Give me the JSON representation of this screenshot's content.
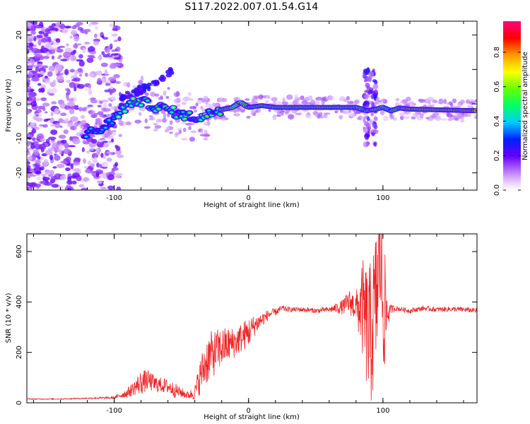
{
  "title": "S117.2022.007.01.54.G14",
  "chart_data": [
    {
      "type": "heatmap",
      "xlabel": "Height of straight line (km)",
      "ylabel": "Frequency (Hz)",
      "xlim": [
        -165,
        170
      ],
      "ylim": [
        -25,
        24
      ],
      "xticks": [
        -100,
        0,
        100
      ],
      "yticks": [
        -20,
        -10,
        0,
        10,
        20
      ],
      "track": [
        [
          -120,
          -8.5
        ],
        [
          -110,
          -7.5
        ],
        [
          -102,
          -5
        ],
        [
          -95,
          -2
        ],
        [
          -88,
          0
        ],
        [
          -82,
          1
        ],
        [
          -75,
          0
        ],
        [
          -68,
          -1
        ],
        [
          -60,
          -1.5
        ],
        [
          -52,
          -3
        ],
        [
          -45,
          -3.5
        ],
        [
          -38,
          -4
        ],
        [
          -32,
          -3.5
        ],
        [
          -25,
          -2
        ],
        [
          -18,
          -1.5
        ],
        [
          -12,
          -1
        ],
        [
          -6,
          0.5
        ],
        [
          0,
          -1
        ],
        [
          10,
          -0.5
        ],
        [
          20,
          -1
        ],
        [
          40,
          -1
        ],
        [
          60,
          -1
        ],
        [
          80,
          -1
        ],
        [
          88,
          -2
        ],
        [
          95,
          -1.5
        ],
        [
          100,
          -1
        ],
        [
          106,
          -2
        ],
        [
          112,
          -1.2
        ],
        [
          120,
          -1.5
        ],
        [
          140,
          -1.7
        ],
        [
          170,
          -2
        ]
      ],
      "colorbar": {
        "label": "Normalized spectral amplitude",
        "ticks": [
          "0.0",
          "0.2",
          "0.4",
          "0.6",
          "0.8"
        ],
        "tick_values": [
          0.0,
          0.2,
          0.4,
          0.6,
          0.8
        ],
        "range": [
          0,
          0.98
        ],
        "stops": [
          [
            0.0,
            "#ffffff"
          ],
          [
            0.05,
            "#e6c8ff"
          ],
          [
            0.12,
            "#b36bff"
          ],
          [
            0.2,
            "#6600ff"
          ],
          [
            0.3,
            "#0020ff"
          ],
          [
            0.4,
            "#00ccff"
          ],
          [
            0.5,
            "#00ff66"
          ],
          [
            0.6,
            "#66ff00"
          ],
          [
            0.7,
            "#ffff00"
          ],
          [
            0.8,
            "#ff9900"
          ],
          [
            0.9,
            "#ff0000"
          ],
          [
            1.0,
            "#ff0080"
          ]
        ]
      }
    },
    {
      "type": "line",
      "xlabel": "Height of straight line (km)",
      "ylabel": "SNR (10 * v/v)",
      "xlim": [
        -165,
        170
      ],
      "ylim": [
        0,
        670
      ],
      "xticks": [
        -100,
        0,
        100
      ],
      "yticks": [
        0,
        200,
        400,
        600
      ],
      "color": "#ee2222",
      "series": [
        {
          "x": [
            -165,
            -140,
            -120,
            -100,
            -90,
            -85,
            -80,
            -75,
            -70,
            -65,
            -60,
            -55,
            -50,
            -45,
            -40,
            -35,
            -30,
            -25,
            -20,
            -15,
            -10,
            -5,
            0,
            5,
            10,
            15,
            20,
            25,
            30,
            40,
            50,
            60,
            70,
            75,
            80,
            85,
            88,
            90,
            92,
            95,
            98,
            100,
            102,
            105,
            110,
            115,
            120,
            130,
            140,
            150,
            160,
            170
          ],
          "values": [
            15,
            15,
            18,
            20,
            40,
            60,
            80,
            90,
            75,
            70,
            65,
            50,
            40,
            30,
            40,
            120,
            180,
            200,
            220,
            230,
            240,
            260,
            280,
            310,
            330,
            350,
            360,
            375,
            370,
            370,
            365,
            370,
            380,
            400,
            380,
            370,
            300,
            250,
            300,
            400,
            600,
            400,
            350,
            370,
            375,
            370,
            365,
            375,
            370,
            372,
            370,
            365
          ],
          "noise": [
            2,
            2,
            3,
            5,
            20,
            30,
            50,
            40,
            35,
            30,
            30,
            30,
            20,
            15,
            30,
            80,
            100,
            90,
            80,
            70,
            60,
            60,
            60,
            40,
            30,
            20,
            15,
            12,
            10,
            10,
            10,
            10,
            30,
            50,
            60,
            200,
            250,
            300,
            300,
            300,
            250,
            300,
            200,
            20,
            10,
            10,
            10,
            10,
            10,
            10,
            10,
            10
          ]
        }
      ]
    }
  ]
}
